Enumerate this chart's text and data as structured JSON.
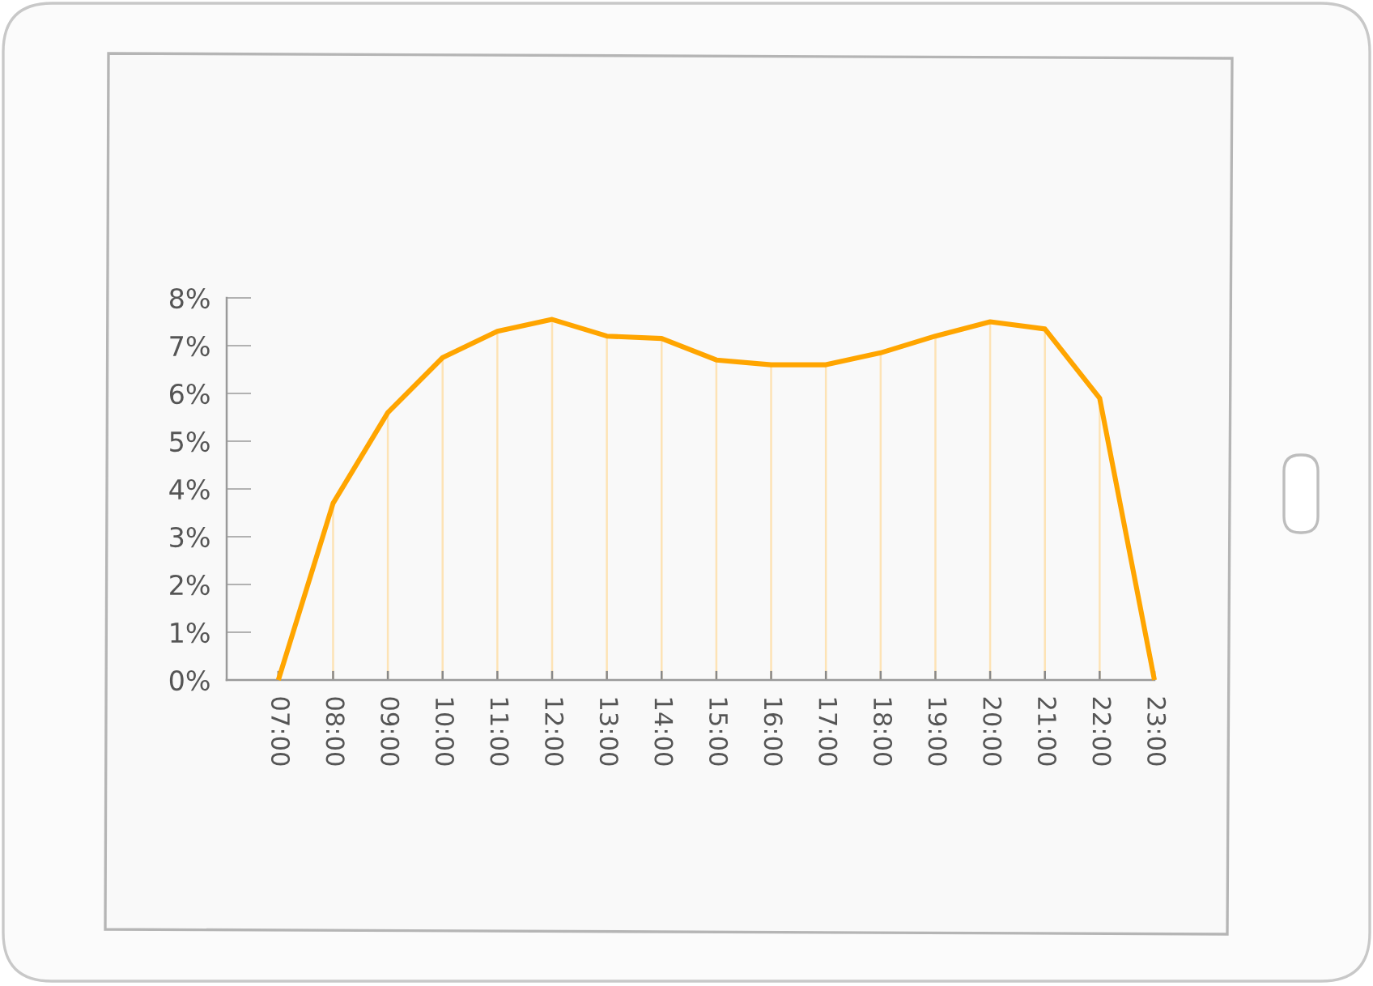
{
  "chart_data": {
    "type": "line",
    "categories": [
      "07:00",
      "08:00",
      "09:00",
      "10:00",
      "11:00",
      "12:00",
      "13:00",
      "14:00",
      "15:00",
      "16:00",
      "17:00",
      "18:00",
      "19:00",
      "20:00",
      "21:00",
      "22:00",
      "23:00"
    ],
    "series": [
      {
        "color": "#ffa500",
        "values": [
          0,
          3.7,
          5.6,
          6.75,
          7.3,
          7.55,
          7.2,
          7.15,
          6.7,
          6.6,
          6.6,
          6.85,
          7.2,
          7.5,
          7.35,
          5.9,
          0
        ]
      }
    ],
    "ylim": [
      0,
      8
    ],
    "yticks": [
      {
        "value": 0,
        "label": "0%"
      },
      {
        "value": 1,
        "label": "1%"
      },
      {
        "value": 2,
        "label": "2%"
      },
      {
        "value": 3,
        "label": "3%"
      },
      {
        "value": 4,
        "label": "4%"
      },
      {
        "value": 5,
        "label": "5%"
      },
      {
        "value": 6,
        "label": "6%"
      },
      {
        "value": 7,
        "label": "7%"
      },
      {
        "value": 8,
        "label": "8%"
      }
    ],
    "grid": "x"
  }
}
